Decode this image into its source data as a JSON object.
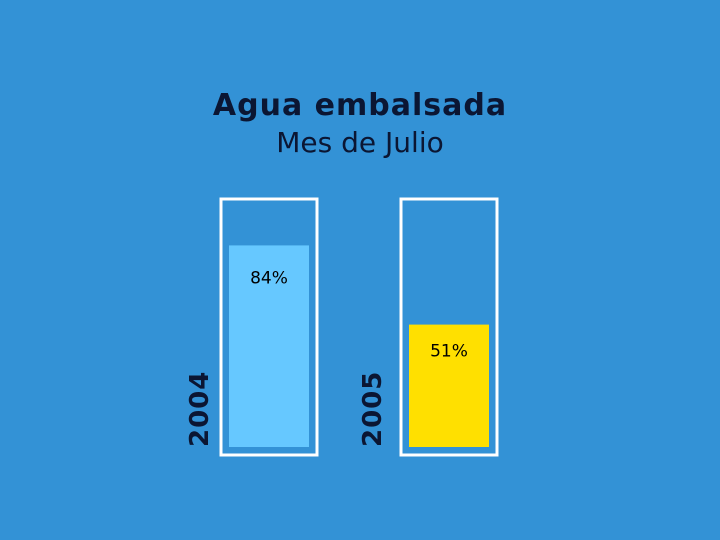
{
  "colors": {
    "background": "#3392d6",
    "frame": "#ffffff",
    "bar_2004": "#66c8ff",
    "bar_2005": "#ffe000"
  },
  "chart_data": {
    "type": "bar",
    "title": "Agua embalsada",
    "subtitle": "Mes de Julio",
    "categories": [
      "2004",
      "2005"
    ],
    "values": [
      84,
      51
    ],
    "value_labels": [
      "84%",
      "51%"
    ],
    "unit": "%",
    "ylim": [
      0,
      100
    ],
    "grid": false,
    "legend": "none"
  }
}
